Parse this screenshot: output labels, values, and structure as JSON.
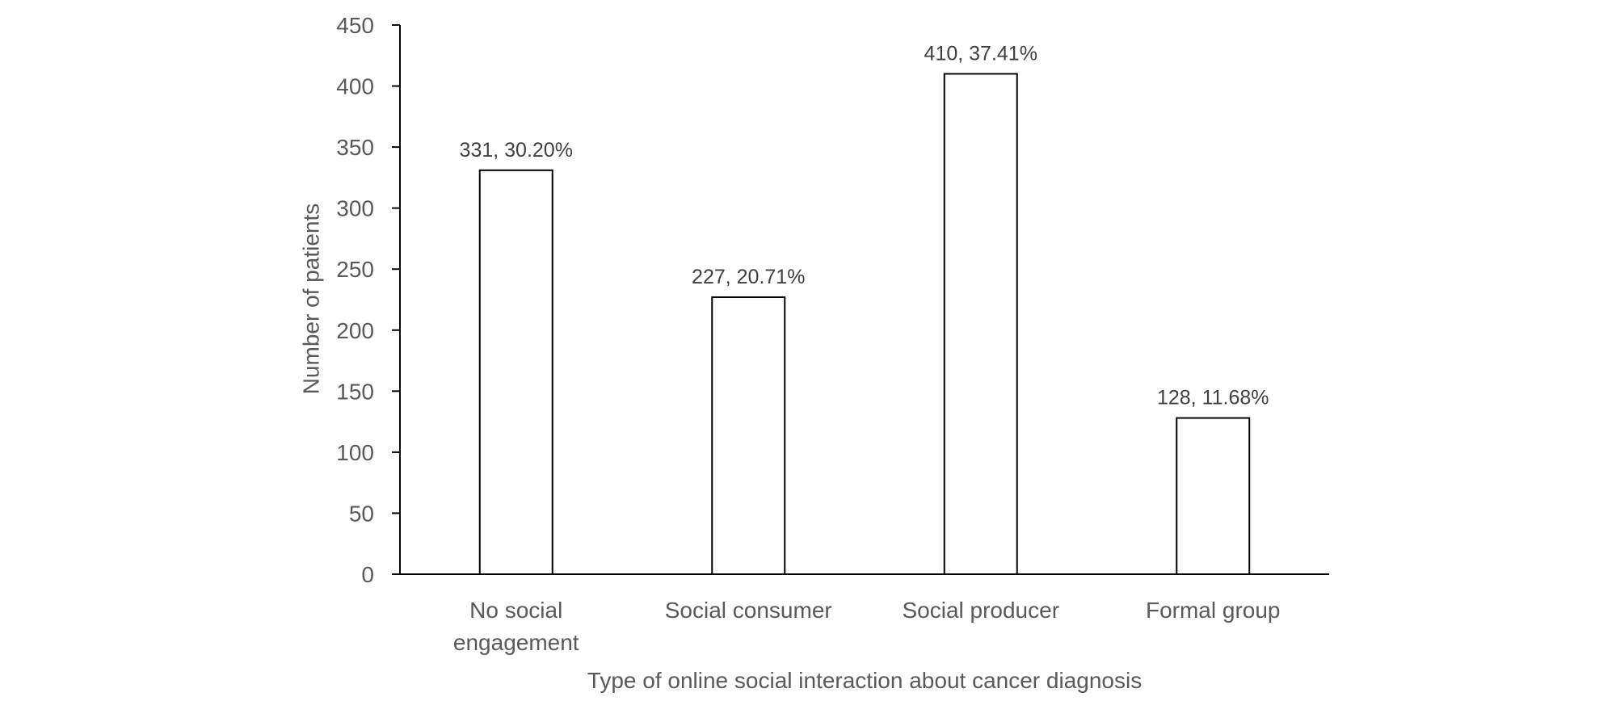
{
  "chart_data": {
    "type": "bar",
    "categories": [
      "No social engagement",
      "Social consumer",
      "Social producer",
      "Formal group"
    ],
    "category_lines": [
      [
        "No social",
        "engagement"
      ],
      [
        "Social consumer"
      ],
      [
        "Social producer"
      ],
      [
        "Formal group"
      ]
    ],
    "values": [
      331,
      227,
      410,
      128
    ],
    "data_labels": [
      "331, 30.20%",
      "227, 20.71%",
      "410, 37.41%",
      "128, 11.68%"
    ],
    "title": "",
    "xlabel": "Type of online social interaction about cancer diagnosis",
    "ylabel": "Number of patients",
    "ylim": [
      0,
      450
    ],
    "yticks": [
      0,
      50,
      100,
      150,
      200,
      250,
      300,
      350,
      400,
      450
    ],
    "grid": false,
    "legend": "none",
    "colors": {
      "bar_fill": "#ffffff",
      "bar_stroke": "#000000",
      "axis": "#000000",
      "tick_text": "#595959",
      "label_text": "#404040"
    }
  }
}
